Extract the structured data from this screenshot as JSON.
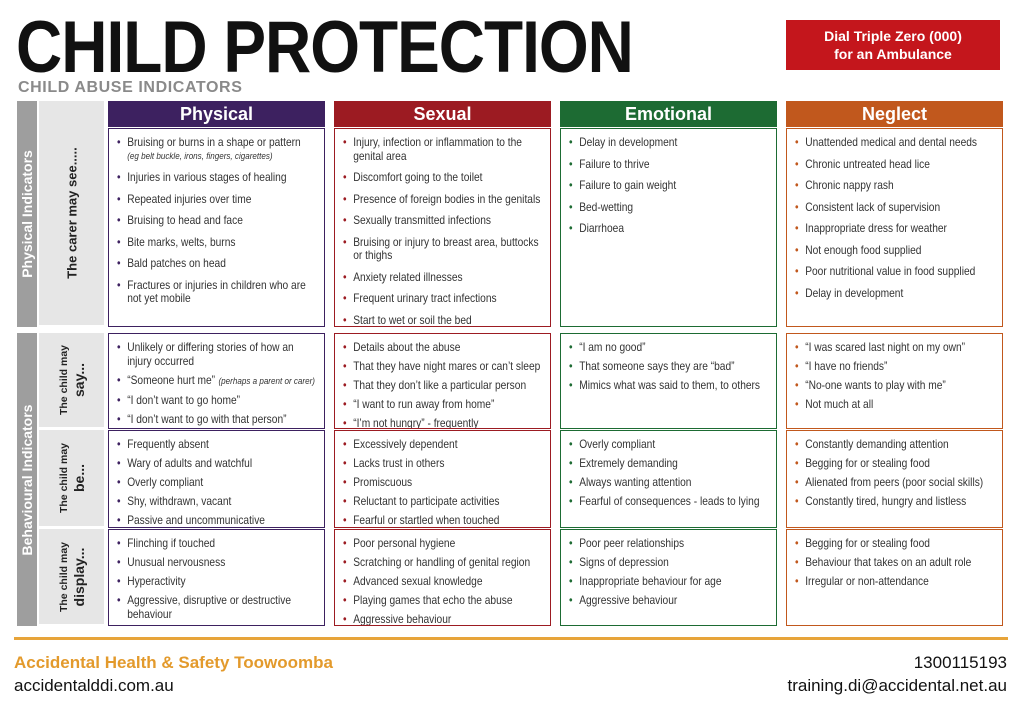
{
  "header": {
    "title": "CHILD PROTECTION",
    "subtitle": "CHILD ABUSE INDICATORS",
    "alert": [
      "Dial Triple Zero (000)",
      "for an Ambulance"
    ]
  },
  "columns": [
    {
      "name": "Physical",
      "color": "#3d2160"
    },
    {
      "name": "Sexual",
      "color": "#9c1b22"
    },
    {
      "name": "Emotional",
      "color": "#1d6b33"
    },
    {
      "name": "Neglect",
      "color": "#c1581d"
    }
  ],
  "sections": [
    {
      "label": "Physical Indicators",
      "rows": [
        {
          "label": "The carer may see.....",
          "cells": [
            [
              {
                "text": "Bruising or burns in a shape or pattern",
                "note": "(eg belt buckle, irons, fingers, cigarettes)"
              },
              "Injuries in various stages of healing",
              "Repeated injuries over time",
              "Bruising to head and face",
              "Bite marks, welts, burns",
              "Bald patches on head",
              "Fractures or injuries in children who are not yet mobile"
            ],
            [
              "Injury, infection or inflammation to the genital area",
              "Discomfort going to the toilet",
              "Presence of foreign bodies in the genitals",
              "Sexually transmitted infections",
              "Bruising or injury to breast area, buttocks or thighs",
              "Anxiety related illnesses",
              "Frequent urinary tract infections",
              "Start to wet or soil the bed"
            ],
            [
              "Delay in development",
              "Failure to thrive",
              "Failure to gain weight",
              "Bed-wetting",
              "Diarrhoea"
            ],
            [
              "Unattended medical and dental needs",
              "Chronic untreated head lice",
              "Chronic nappy rash",
              "Consistent lack of supervision",
              "Inappropriate dress for weather",
              "Not enough food supplied",
              "Poor nutritional value in food supplied",
              "Delay in development"
            ]
          ]
        }
      ]
    },
    {
      "label": "Behavioural Indicators",
      "rows": [
        {
          "label": {
            "lead": "The child may",
            "word": "say..."
          },
          "cells": [
            [
              "Unlikely or differing stories of how an injury occurred",
              {
                "text": "“Someone hurt me”",
                "note": "(perhaps a parent or carer)"
              },
              "“I don’t want to go home”",
              "“I don’t want to go with that person”"
            ],
            [
              "Details about the abuse",
              "That they have night mares or can’t sleep",
              "That they don’t like a particular person",
              "“I want to run away from home”",
              "“I’m not hungry” - frequently"
            ],
            [
              "“I am no good”",
              "That someone says they are “bad”",
              "Mimics what was said to them, to others"
            ],
            [
              "“I was scared last night on my own”",
              "“I have no friends”",
              "“No-one wants to play with me”",
              "Not much at all"
            ]
          ]
        },
        {
          "label": {
            "lead": "The child may",
            "word": "be..."
          },
          "cells": [
            [
              "Frequently absent",
              "Wary of adults and watchful",
              "Overly compliant",
              "Shy, withdrawn, vacant",
              "Passive and uncommunicative"
            ],
            [
              "Excessively dependent",
              "Lacks trust in others",
              "Promiscuous",
              "Reluctant to participate activities",
              "Fearful or startled when touched"
            ],
            [
              "Overly compliant",
              "Extremely demanding",
              "Always wanting attention",
              "Fearful of consequences - leads to lying"
            ],
            [
              "Constantly demanding attention",
              "Begging for or stealing food",
              "Alienated from peers (poor social skills)",
              "Constantly tired, hungry and listless"
            ]
          ]
        },
        {
          "label": {
            "lead": "The child may",
            "word": "display..."
          },
          "cells": [
            [
              "Flinching if touched",
              "Unusual nervousness",
              "Hyperactivity",
              "Aggressive, disruptive or destructive behaviour"
            ],
            [
              "Poor personal hygiene",
              "Scratching or handling of genital region",
              "Advanced sexual knowledge",
              "Playing games that echo the abuse",
              "Aggressive behaviour"
            ],
            [
              "Poor peer relationships",
              "Signs of depression",
              "Inappropriate behaviour for age",
              "Aggressive behaviour"
            ],
            [
              "Begging for or stealing food",
              "Behaviour that takes on an adult role",
              "Irregular or non-attendance"
            ]
          ]
        }
      ]
    }
  ],
  "footer": {
    "org": "Accidental Health & Safety Toowoomba",
    "website": "accidentalddi.com.au",
    "phone": "1300115193",
    "email": "training.di@accidental.net.au"
  }
}
